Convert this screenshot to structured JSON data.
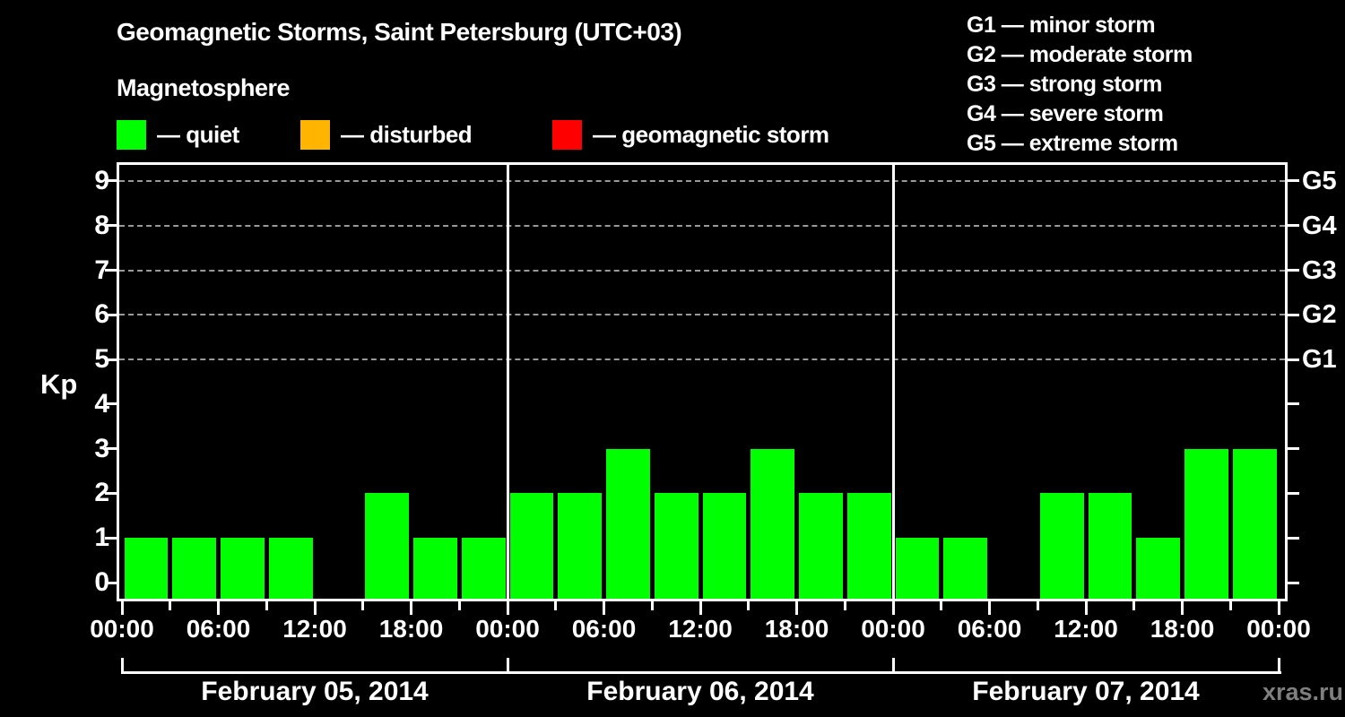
{
  "chart_data": {
    "type": "bar",
    "title": "Geomagnetic Storms, Saint Petersburg (UTC+03)",
    "subtitle": "Magnetosphere",
    "ylabel": "Kp",
    "ylim": [
      0,
      9
    ],
    "yticks": [
      0,
      1,
      2,
      3,
      4,
      5,
      6,
      7,
      8,
      9
    ],
    "grid_levels": [
      5,
      6,
      7,
      8,
      9
    ],
    "grid_on": true,
    "legend_position": "top",
    "kp_state_legend": [
      {
        "label": "— quiet",
        "color_key": "quiet"
      },
      {
        "label": "— disturbed",
        "color_key": "disturbed"
      },
      {
        "label": "— geomagnetic storm",
        "color_key": "storm"
      }
    ],
    "g_scale_legend": [
      "G1 — minor storm",
      "G2 — moderate storm",
      "G3 — strong storm",
      "G4 — severe storm",
      "G5 — extreme storm"
    ],
    "right_axis_labels": [
      {
        "kp": 5,
        "label": "G1"
      },
      {
        "kp": 6,
        "label": "G2"
      },
      {
        "kp": 7,
        "label": "G3"
      },
      {
        "kp": 8,
        "label": "G4"
      },
      {
        "kp": 9,
        "label": "G5"
      }
    ],
    "slot_hours": 3,
    "time_tick_labels": [
      "00:00",
      "06:00",
      "12:00",
      "18:00"
    ],
    "closing_time_label": "00:00",
    "days": [
      {
        "date": "February 05, 2014",
        "values": [
          1,
          1,
          1,
          1,
          0,
          2,
          1,
          1
        ]
      },
      {
        "date": "February 06, 2014",
        "values": [
          2,
          2,
          3,
          2,
          2,
          3,
          2,
          2
        ]
      },
      {
        "date": "February 07, 2014",
        "values": [
          1,
          1,
          0,
          2,
          2,
          1,
          3,
          3
        ]
      }
    ],
    "colors": {
      "quiet": "#00ff00",
      "disturbed": "#ffb400",
      "storm": "#ff0000",
      "grid": "#999999",
      "axis": "#ffffff",
      "text": "#ffffff",
      "watermark": "#7f7f7f",
      "background": "#000000"
    },
    "watermark": "xras.ru"
  }
}
